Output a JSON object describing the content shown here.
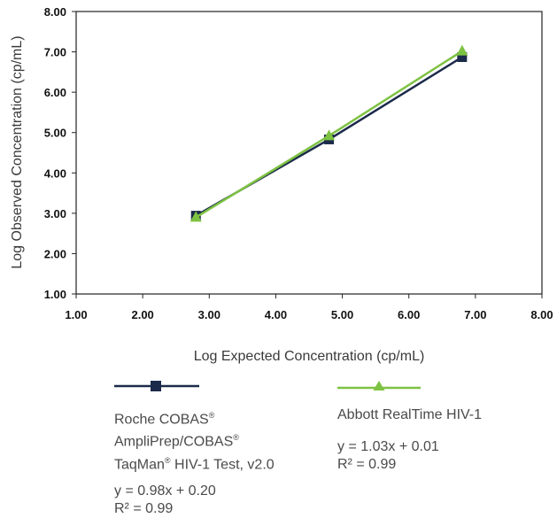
{
  "chart_data": {
    "type": "line",
    "xlabel": "Log Expected Concentration (cp/mL)",
    "ylabel": "Log Observed Concentration (cp/mL)",
    "xlim": [
      1.0,
      8.0
    ],
    "ylim": [
      1.0,
      8.0
    ],
    "x_ticks": [
      "1.00",
      "2.00",
      "3.00",
      "4.00",
      "5.00",
      "6.00",
      "7.00",
      "8.00"
    ],
    "y_ticks": [
      "1.00",
      "2.00",
      "3.00",
      "4.00",
      "5.00",
      "6.00",
      "7.00",
      "8.00"
    ],
    "grid": false,
    "legend_position": "bottom",
    "series": [
      {
        "name": "Roche COBAS® AmpliPrep/COBAS® TaqMan® HIV-1 Test, v2.0",
        "color": "#1b2a4a",
        "marker": "square",
        "x": [
          2.8,
          4.8,
          6.8
        ],
        "y": [
          2.94,
          4.83,
          6.87
        ]
      },
      {
        "name": "Abbott RealTime HIV-1",
        "color": "#7dc242",
        "marker": "triangle",
        "x": [
          2.8,
          4.8,
          6.8
        ],
        "y": [
          2.9,
          4.92,
          7.02
        ]
      }
    ]
  },
  "legend": {
    "roche": {
      "line1": "Roche COBAS",
      "line2": "AmpliPrep/COBAS",
      "line3a": "TaqMan",
      "line3b": " HIV-1 Test, v2.0",
      "reg": "®",
      "equation": "y = 0.98x + 0.20",
      "r2": "R² = 0.99"
    },
    "abbott": {
      "name": "Abbott RealTime HIV-1",
      "equation": "y = 1.03x + 0.01",
      "r2": "R² = 0.99"
    }
  }
}
